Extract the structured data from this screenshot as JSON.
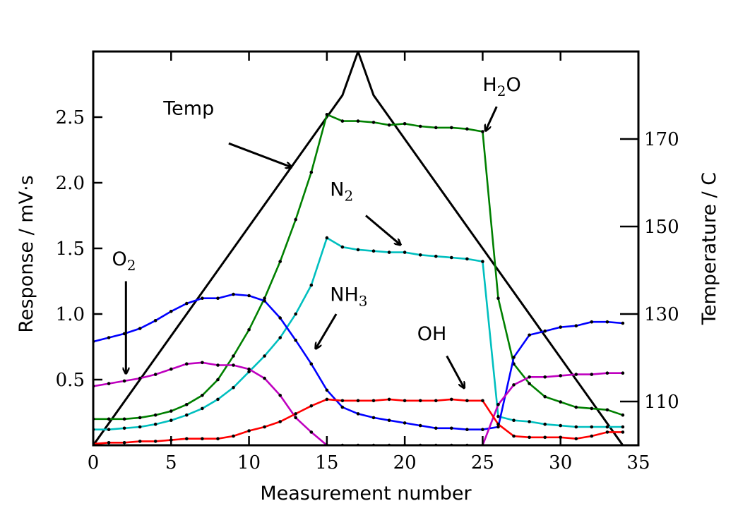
{
  "chart_data": {
    "type": "line",
    "xlabel": "Measurement number",
    "ylabel": "Response / mV·s",
    "y2label": "Temperature / C",
    "xlim": [
      0,
      35
    ],
    "ylim": [
      0,
      3.0
    ],
    "y2lim": [
      100,
      190
    ],
    "xticks": [
      0,
      5,
      10,
      15,
      20,
      25,
      30,
      35
    ],
    "yticks": [
      0.5,
      1.0,
      1.5,
      2.0,
      2.5
    ],
    "ytick_labels": [
      "0.5",
      "1.0",
      "1.5",
      "2.0",
      "2.5"
    ],
    "y2ticks": [
      110,
      130,
      150,
      170
    ],
    "x": [
      0,
      1,
      2,
      3,
      4,
      5,
      6,
      7,
      8,
      9,
      10,
      11,
      12,
      13,
      14,
      15,
      16,
      17,
      18,
      19,
      20,
      21,
      22,
      23,
      24,
      25,
      26,
      27,
      28,
      29,
      30,
      31,
      32,
      33,
      34
    ],
    "series": [
      {
        "name": "",
        "color": "#008000",
        "values": [
          0.2,
          0.2,
          0.2,
          0.21,
          0.23,
          0.26,
          0.31,
          0.38,
          0.5,
          0.68,
          0.88,
          1.12,
          1.4,
          1.72,
          2.08,
          2.52,
          2.47,
          2.47,
          2.46,
          2.44,
          2.45,
          2.43,
          2.42,
          2.42,
          2.41,
          2.39,
          1.12,
          0.62,
          0.47,
          0.37,
          0.33,
          0.29,
          0.28,
          0.27,
          0.23
        ]
      },
      {
        "name": "",
        "color": "#00BFBF",
        "values": [
          0.12,
          0.12,
          0.13,
          0.14,
          0.16,
          0.19,
          0.23,
          0.28,
          0.35,
          0.44,
          0.56,
          0.68,
          0.82,
          1.0,
          1.22,
          1.58,
          1.51,
          1.49,
          1.48,
          1.47,
          1.47,
          1.45,
          1.44,
          1.43,
          1.42,
          1.4,
          0.22,
          0.19,
          0.18,
          0.16,
          0.15,
          0.14,
          0.14,
          0.14,
          0.14
        ]
      },
      {
        "name": "",
        "color": "#0000FF",
        "values": [
          0.79,
          0.82,
          0.85,
          0.89,
          0.95,
          1.02,
          1.08,
          1.12,
          1.12,
          1.15,
          1.14,
          1.1,
          0.97,
          0.8,
          0.62,
          0.42,
          0.29,
          0.24,
          0.21,
          0.19,
          0.17,
          0.15,
          0.13,
          0.13,
          0.12,
          0.12,
          0.14,
          0.67,
          0.84,
          0.87,
          0.9,
          0.91,
          0.94,
          0.94,
          0.93
        ]
      },
      {
        "name": "",
        "color": "#BF00BF",
        "values": [
          0.45,
          0.47,
          0.49,
          0.51,
          0.54,
          0.58,
          0.62,
          0.63,
          0.61,
          0.61,
          0.58,
          0.51,
          0.38,
          0.21,
          0.1,
          0.0,
          0.0,
          0.0,
          0.0,
          0.0,
          0.0,
          0.0,
          0.0,
          0.0,
          0.0,
          0.0,
          0.31,
          0.46,
          0.52,
          0.52,
          0.53,
          0.54,
          0.54,
          0.55,
          0.55
        ]
      },
      {
        "name": "",
        "color": "#FF0000",
        "values": [
          0.01,
          0.02,
          0.02,
          0.03,
          0.03,
          0.04,
          0.05,
          0.05,
          0.05,
          0.07,
          0.11,
          0.14,
          0.18,
          0.24,
          0.3,
          0.35,
          0.34,
          0.34,
          0.34,
          0.35,
          0.34,
          0.34,
          0.34,
          0.35,
          0.34,
          0.34,
          0.16,
          0.07,
          0.06,
          0.06,
          0.06,
          0.05,
          0.07,
          0.1,
          0.1
        ]
      }
    ],
    "temperature_series": {
      "name": "",
      "color": "#000000",
      "x": [
        0,
        16,
        17,
        18,
        34
      ],
      "values": [
        100.0,
        180.0,
        190.0,
        180.0,
        100.0
      ]
    },
    "annotations": [
      {
        "label": "Temp",
        "sub": "",
        "x": 4.5,
        "y": 2.52,
        "arrow_from": [
          8.7,
          2.3
        ],
        "arrow_to": [
          12.7,
          2.12
        ]
      },
      {
        "label": "H",
        "sub": "2",
        "suffix": "O",
        "x": 25.0,
        "y": 2.7,
        "arrow_from": [
          25.9,
          2.58
        ],
        "arrow_to": [
          25.2,
          2.4
        ]
      },
      {
        "label": "N",
        "sub": "2",
        "suffix": "",
        "x": 15.2,
        "y": 1.9,
        "arrow_from": [
          17.5,
          1.75
        ],
        "arrow_to": [
          19.7,
          1.53
        ]
      },
      {
        "label": "O",
        "sub": "2",
        "suffix": "",
        "x": 1.2,
        "y": 1.37,
        "arrow_from": [
          2.1,
          1.25
        ],
        "arrow_to": [
          2.1,
          0.55
        ]
      },
      {
        "label": "NH",
        "sub": "3",
        "suffix": "",
        "x": 15.2,
        "y": 1.1,
        "arrow_from": [
          15.6,
          1.0
        ],
        "arrow_to": [
          14.3,
          0.74
        ]
      },
      {
        "label": "OH",
        "sub": "",
        "suffix": "",
        "x": 20.8,
        "y": 0.8,
        "arrow_from": [
          22.7,
          0.68
        ],
        "arrow_to": [
          23.8,
          0.44
        ]
      }
    ]
  }
}
